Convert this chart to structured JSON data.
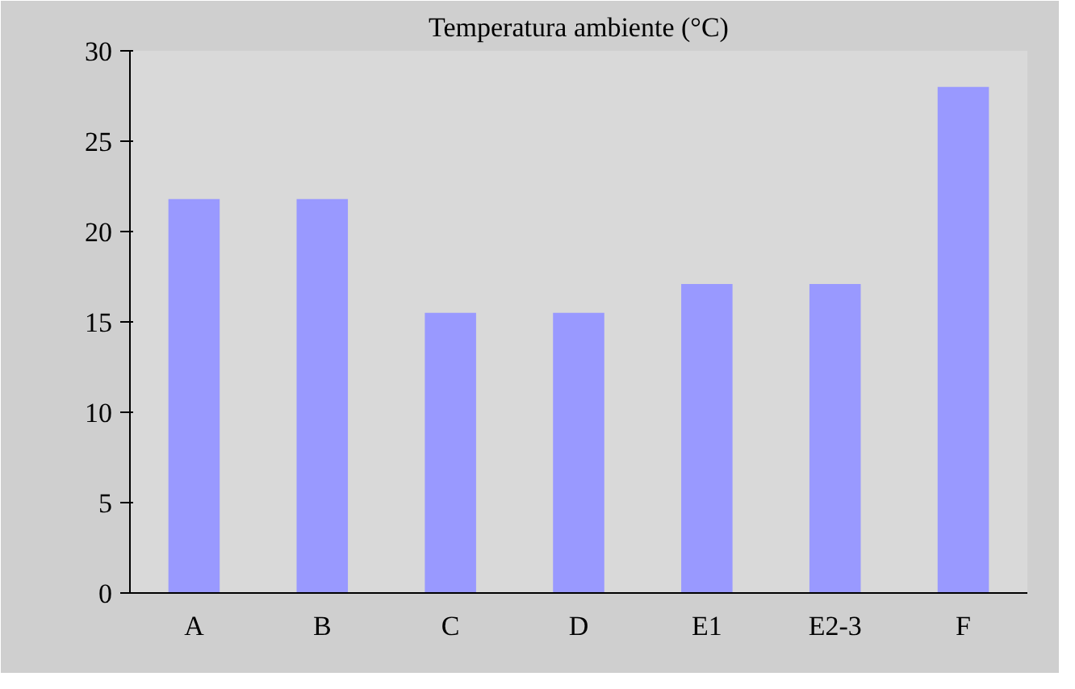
{
  "chart_data": {
    "type": "bar",
    "title": "Temperatura ambiente (°C)",
    "categories": [
      "A",
      "B",
      "C",
      "D",
      "E1",
      "E2-3",
      "F"
    ],
    "values": [
      21.8,
      21.8,
      15.5,
      15.5,
      17.1,
      17.1,
      28
    ],
    "color": "#9999ff",
    "ylim": [
      0,
      30
    ],
    "yticks": [
      0,
      5,
      10,
      15,
      20,
      25,
      30
    ],
    "grid": false
  }
}
